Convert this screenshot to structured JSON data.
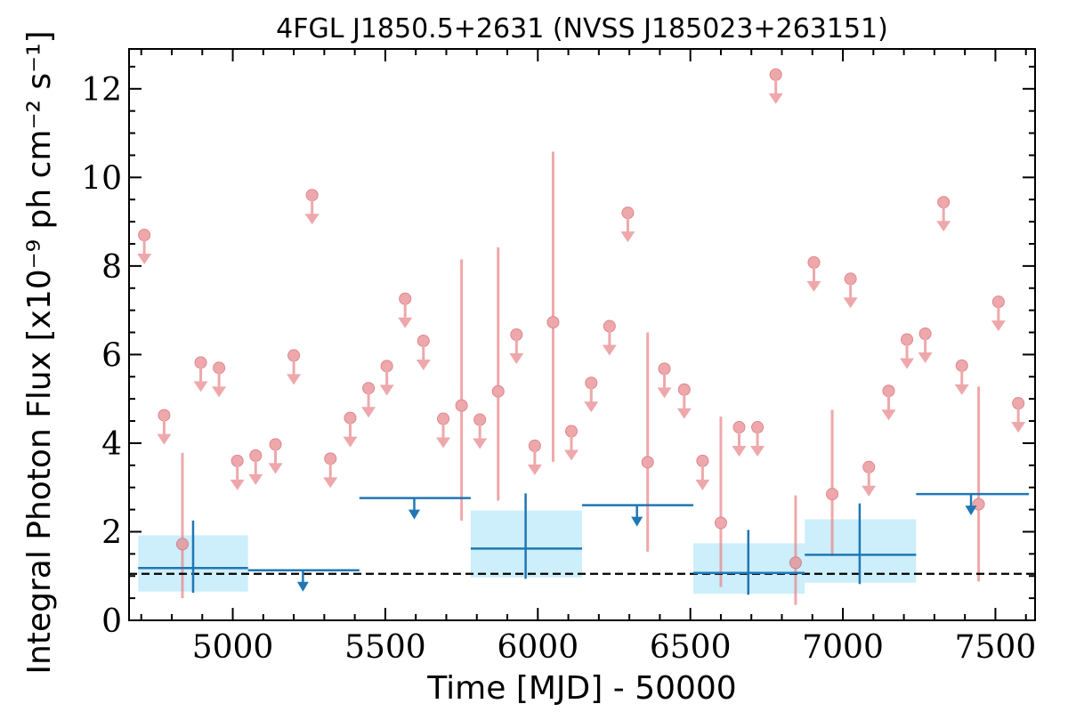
{
  "chart_data": {
    "type": "scatter",
    "title": "4FGL J1850.5+2631 (NVSS J185023+263151)",
    "xlabel": "Time [MJD] - 50000",
    "ylabel": "Integral Photon Flux [x10⁻⁹ ph cm⁻² s⁻¹]",
    "xlim": [
      4660,
      7630
    ],
    "ylim": [
      0,
      12.9
    ],
    "x_ticks": [
      "5000",
      "5500",
      "6000",
      "6500",
      "7000",
      "7500"
    ],
    "y_ticks": [
      "0",
      "2",
      "4",
      "6",
      "8",
      "10",
      "12"
    ],
    "grid": false,
    "reference_line": {
      "y": 1.05,
      "style": "dashed"
    },
    "series": [
      {
        "marker": "circle",
        "color": "#e8878c",
        "detections": [
          {
            "x": 4835,
            "y": 1.72,
            "ylo": 0.5,
            "yhi": 3.78
          },
          {
            "x": 5750,
            "y": 4.85,
            "ylo": 2.25,
            "yhi": 8.15
          },
          {
            "x": 5870,
            "y": 5.17,
            "ylo": 2.7,
            "yhi": 8.42
          },
          {
            "x": 6050,
            "y": 6.73,
            "ylo": 3.58,
            "yhi": 10.58
          },
          {
            "x": 6360,
            "y": 3.57,
            "ylo": 1.55,
            "yhi": 6.5
          },
          {
            "x": 6600,
            "y": 2.2,
            "ylo": 0.75,
            "yhi": 4.6
          },
          {
            "x": 6845,
            "y": 1.3,
            "ylo": 0.35,
            "yhi": 2.82
          },
          {
            "x": 6965,
            "y": 2.85,
            "ylo": 1.45,
            "yhi": 4.75
          },
          {
            "x": 7445,
            "y": 2.62,
            "ylo": 0.88,
            "yhi": 5.28
          }
        ],
        "upper_limits": [
          {
            "x": 4710,
            "y": 8.7
          },
          {
            "x": 4775,
            "y": 4.63
          },
          {
            "x": 4895,
            "y": 5.82
          },
          {
            "x": 4955,
            "y": 5.7
          },
          {
            "x": 5015,
            "y": 3.6
          },
          {
            "x": 5075,
            "y": 3.72
          },
          {
            "x": 5140,
            "y": 3.97
          },
          {
            "x": 5200,
            "y": 5.98
          },
          {
            "x": 5260,
            "y": 9.6
          },
          {
            "x": 5320,
            "y": 3.65
          },
          {
            "x": 5385,
            "y": 4.57
          },
          {
            "x": 5445,
            "y": 5.24
          },
          {
            "x": 5505,
            "y": 5.74
          },
          {
            "x": 5565,
            "y": 7.26
          },
          {
            "x": 5625,
            "y": 6.31
          },
          {
            "x": 5690,
            "y": 4.55
          },
          {
            "x": 5810,
            "y": 4.53
          },
          {
            "x": 5930,
            "y": 6.45
          },
          {
            "x": 5990,
            "y": 3.94
          },
          {
            "x": 6110,
            "y": 4.27
          },
          {
            "x": 6175,
            "y": 5.36
          },
          {
            "x": 6235,
            "y": 6.64
          },
          {
            "x": 6295,
            "y": 9.2
          },
          {
            "x": 6415,
            "y": 5.68
          },
          {
            "x": 6480,
            "y": 5.21
          },
          {
            "x": 6540,
            "y": 3.6
          },
          {
            "x": 6660,
            "y": 4.36
          },
          {
            "x": 6720,
            "y": 4.36
          },
          {
            "x": 6780,
            "y": 12.32
          },
          {
            "x": 6905,
            "y": 8.08
          },
          {
            "x": 7025,
            "y": 7.71
          },
          {
            "x": 7085,
            "y": 3.46
          },
          {
            "x": 7150,
            "y": 5.18
          },
          {
            "x": 7210,
            "y": 6.34
          },
          {
            "x": 7270,
            "y": 6.47
          },
          {
            "x": 7330,
            "y": 9.44
          },
          {
            "x": 7390,
            "y": 5.75
          },
          {
            "x": 7510,
            "y": 7.19
          },
          {
            "x": 7575,
            "y": 4.9
          }
        ]
      },
      {
        "marker": "crosshair",
        "color": "#1f77b4",
        "band_color": "#cdeefb",
        "detections": [
          {
            "x": 4870,
            "xlo": 4690,
            "xhi": 5050,
            "y": 1.18,
            "ylo": 0.65,
            "yhi": 1.92
          },
          {
            "x": 5960,
            "xlo": 5780,
            "xhi": 6145,
            "y": 1.62,
            "ylo": 0.97,
            "yhi": 2.48
          },
          {
            "x": 6690,
            "xlo": 6510,
            "xhi": 6875,
            "y": 1.07,
            "ylo": 0.6,
            "yhi": 1.74
          },
          {
            "x": 7055,
            "xlo": 6875,
            "xhi": 7240,
            "y": 1.48,
            "ylo": 0.85,
            "yhi": 2.28
          }
        ],
        "upper_limits": [
          {
            "x": 5230,
            "xlo": 5050,
            "xhi": 5415,
            "y": 1.13
          },
          {
            "x": 5595,
            "xlo": 5415,
            "xhi": 5780,
            "y": 2.76
          },
          {
            "x": 6325,
            "xlo": 6145,
            "xhi": 6510,
            "y": 2.6
          },
          {
            "x": 7420,
            "xlo": 7240,
            "xhi": 7610,
            "y": 2.85
          }
        ]
      }
    ]
  }
}
